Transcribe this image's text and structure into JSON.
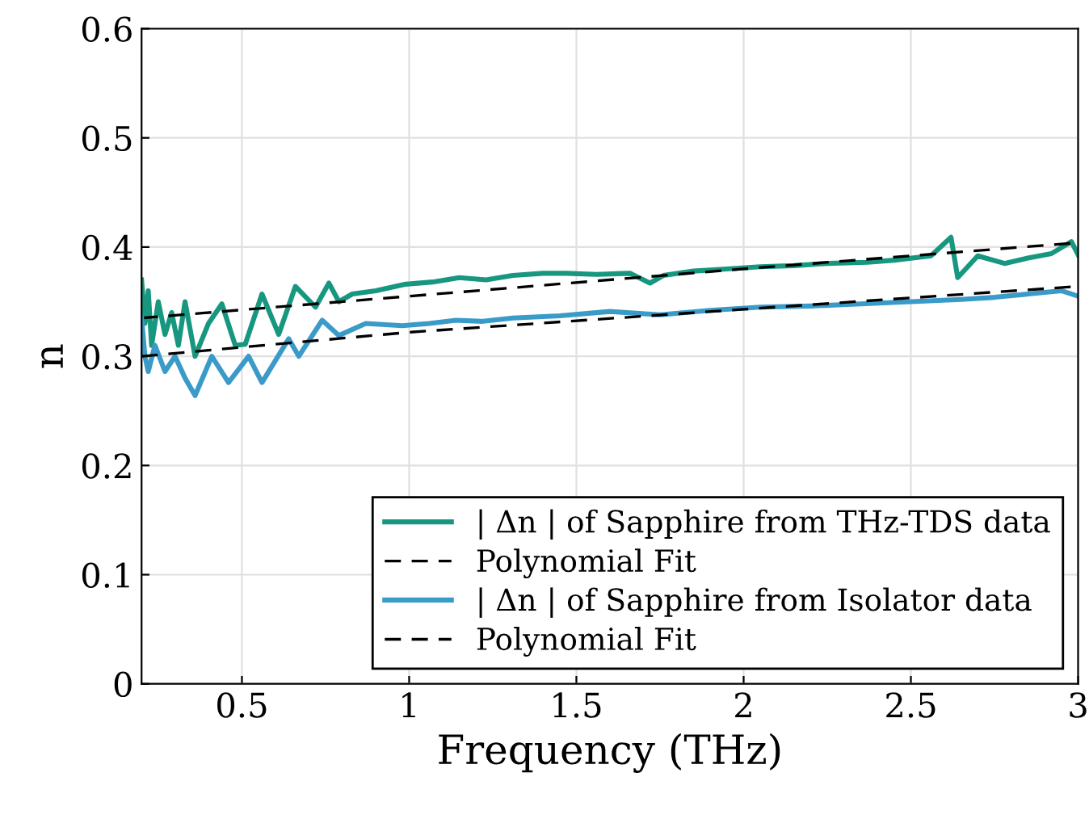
{
  "chart_data": {
    "type": "line",
    "xlabel": "Frequency (THz)",
    "ylabel": "n",
    "xlim": [
      0.2,
      3
    ],
    "ylim": [
      0,
      0.6
    ],
    "xticks": [
      0.5,
      1,
      1.5,
      2,
      2.5,
      3
    ],
    "yticks": [
      0,
      0.1,
      0.2,
      0.3,
      0.4,
      0.5,
      0.6
    ],
    "grid": true,
    "legend": "bottom right",
    "series": [
      {
        "name": "| Δn | of Sapphire from THz-TDS data",
        "color": "#17977f",
        "line_style": "solid",
        "x": [
          0.2,
          0.21,
          0.22,
          0.23,
          0.25,
          0.27,
          0.29,
          0.31,
          0.33,
          0.36,
          0.4,
          0.44,
          0.48,
          0.51,
          0.56,
          0.61,
          0.66,
          0.72,
          0.76,
          0.79,
          0.83,
          0.9,
          0.99,
          1.07,
          1.15,
          1.23,
          1.31,
          1.4,
          1.47,
          1.56,
          1.66,
          1.72,
          1.76,
          1.85,
          1.95,
          2.05,
          2.15,
          2.25,
          2.37,
          2.45,
          2.56,
          2.62,
          2.64,
          2.7,
          2.78,
          2.85,
          2.92,
          2.98,
          3.0
        ],
        "values": [
          0.37,
          0.33,
          0.36,
          0.31,
          0.35,
          0.32,
          0.34,
          0.31,
          0.35,
          0.3,
          0.33,
          0.348,
          0.31,
          0.311,
          0.357,
          0.32,
          0.364,
          0.345,
          0.367,
          0.35,
          0.357,
          0.36,
          0.366,
          0.368,
          0.372,
          0.37,
          0.374,
          0.376,
          0.376,
          0.375,
          0.376,
          0.367,
          0.374,
          0.378,
          0.38,
          0.382,
          0.383,
          0.385,
          0.386,
          0.388,
          0.392,
          0.409,
          0.372,
          0.392,
          0.385,
          0.39,
          0.394,
          0.405,
          0.393
        ]
      },
      {
        "name": "Polynomial Fit",
        "color": "#000000",
        "line_style": "dashed",
        "x": [
          0.2,
          1,
          2,
          3
        ],
        "values": [
          0.335,
          0.355,
          0.38,
          0.404
        ]
      },
      {
        "name": "| Δn | of Sapphire from Isolator data",
        "color": "#3a9bc8",
        "line_style": "solid",
        "x": [
          0.2,
          0.21,
          0.22,
          0.24,
          0.27,
          0.3,
          0.33,
          0.36,
          0.41,
          0.46,
          0.52,
          0.56,
          0.64,
          0.67,
          0.74,
          0.79,
          0.87,
          0.98,
          1.06,
          1.14,
          1.22,
          1.31,
          1.45,
          1.6,
          1.75,
          1.9,
          2.05,
          2.2,
          2.35,
          2.5,
          2.65,
          2.75,
          2.85,
          2.95,
          3.0
        ],
        "values": [
          0.335,
          0.3,
          0.286,
          0.31,
          0.286,
          0.3,
          0.28,
          0.264,
          0.3,
          0.276,
          0.3,
          0.276,
          0.316,
          0.3,
          0.333,
          0.319,
          0.33,
          0.328,
          0.33,
          0.333,
          0.332,
          0.335,
          0.337,
          0.341,
          0.338,
          0.342,
          0.345,
          0.346,
          0.348,
          0.35,
          0.352,
          0.354,
          0.357,
          0.36,
          0.355
        ]
      },
      {
        "name": "Polynomial Fit",
        "color": "#000000",
        "line_style": "dashed",
        "x": [
          0.2,
          1,
          2,
          3
        ],
        "values": [
          0.3,
          0.322,
          0.343,
          0.364
        ]
      }
    ]
  }
}
